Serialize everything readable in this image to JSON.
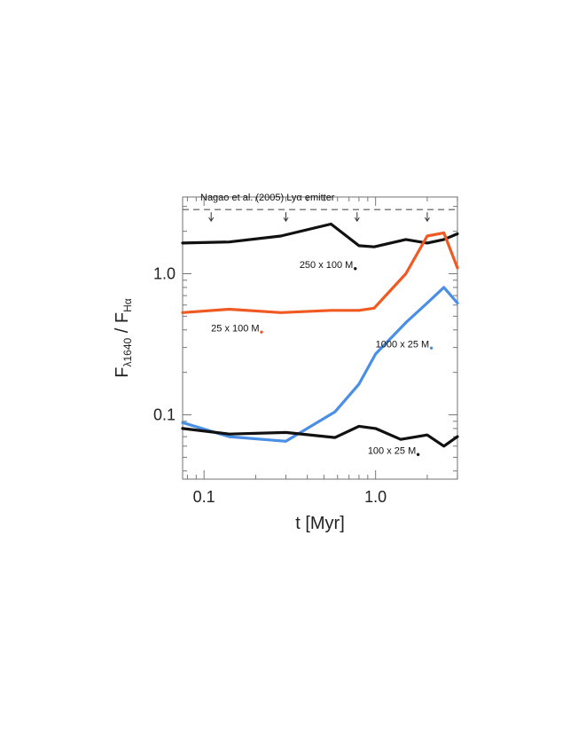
{
  "chart_data": {
    "type": "line",
    "xscale": "log",
    "yscale": "log",
    "xlim": [
      0.075,
      3.0
    ],
    "ylim": [
      0.035,
      3.5
    ],
    "grid": false,
    "xlabel": "t [Myr]",
    "ylabel": {
      "f1": "F",
      "s1": "λ1640",
      "sep": " / ",
      "f2": "F",
      "s2": "Hα"
    },
    "xticks": [
      {
        "value": 0.1,
        "label": "0.1"
      },
      {
        "value": 1.0,
        "label": "1.0"
      }
    ],
    "yticks": [
      {
        "value": 0.1,
        "label": "0.1"
      },
      {
        "value": 1.0,
        "label": "1.0"
      }
    ],
    "reference_line": {
      "label": "Nagao et al. (2005) Lyα emitter",
      "y": 2.85,
      "style": "dashed",
      "arrow_x": [
        0.11,
        0.3,
        0.78,
        2.0
      ]
    },
    "series": [
      {
        "name": "250 x 100 M",
        "color": "#111111",
        "x": [
          0.075,
          0.14,
          0.28,
          0.55,
          0.8,
          0.98,
          1.5,
          2.0,
          2.5,
          3.0
        ],
        "y": [
          1.65,
          1.68,
          1.85,
          2.25,
          1.58,
          1.55,
          1.75,
          1.65,
          1.75,
          1.92
        ],
        "label_x": 0.36,
        "label_y": 1.1
      },
      {
        "name": "25 x 100 M",
        "color": "#f05a22",
        "x": [
          0.075,
          0.14,
          0.28,
          0.55,
          0.8,
          0.98,
          1.5,
          2.0,
          2.5,
          3.0
        ],
        "y": [
          0.53,
          0.56,
          0.53,
          0.55,
          0.55,
          0.57,
          1.0,
          1.85,
          1.95,
          1.1
        ],
        "label_x": 0.11,
        "label_y": 0.39
      },
      {
        "name": "1000 x 25 M",
        "color": "#4a8fe6",
        "x": [
          0.075,
          0.14,
          0.3,
          0.58,
          0.8,
          1.0,
          1.5,
          2.0,
          2.5,
          3.0
        ],
        "y": [
          0.088,
          0.07,
          0.065,
          0.105,
          0.165,
          0.27,
          0.45,
          0.62,
          0.8,
          0.62
        ],
        "label_x": 1.0,
        "label_y": 0.3
      },
      {
        "name": "100 x 25 M",
        "color": "#111111",
        "x": [
          0.075,
          0.14,
          0.3,
          0.58,
          0.8,
          1.0,
          1.4,
          2.0,
          2.5,
          3.0
        ],
        "y": [
          0.08,
          0.073,
          0.075,
          0.069,
          0.083,
          0.08,
          0.067,
          0.072,
          0.06,
          0.07
        ],
        "label_x": 0.9,
        "label_y": 0.053
      }
    ]
  }
}
